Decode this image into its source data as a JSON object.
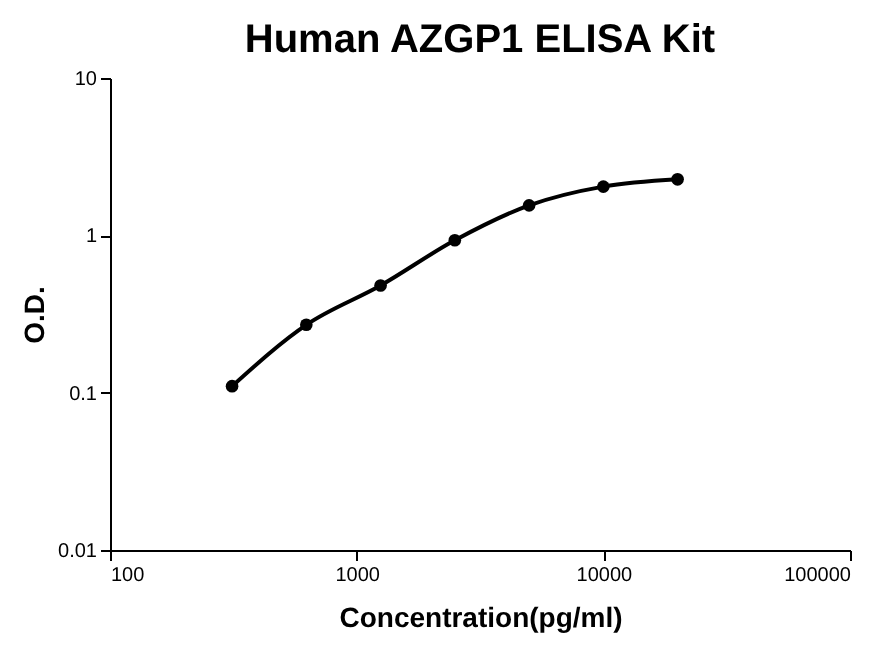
{
  "chart_data": {
    "type": "line",
    "title": "Human AZGP1 ELISA Kit",
    "xlabel": "Concentration(pg/ml)",
    "ylabel": "O.D.",
    "x": [
      312.5,
      625,
      1250,
      2500,
      5000,
      10000,
      20000
    ],
    "series": [
      {
        "color": "#000000",
        "values": [
          0.11,
          0.27,
          0.48,
          0.93,
          1.55,
          2.04,
          2.27
        ]
      }
    ],
    "log": "xy",
    "xlim": [
      100,
      100000
    ],
    "xticks": [
      100,
      1000,
      10000,
      100000
    ],
    "ylim": [
      0.01,
      10
    ],
    "yticks": [
      0.01,
      0.1,
      1,
      10
    ],
    "grid": false,
    "marker": "circle",
    "line_style": "solid"
  }
}
